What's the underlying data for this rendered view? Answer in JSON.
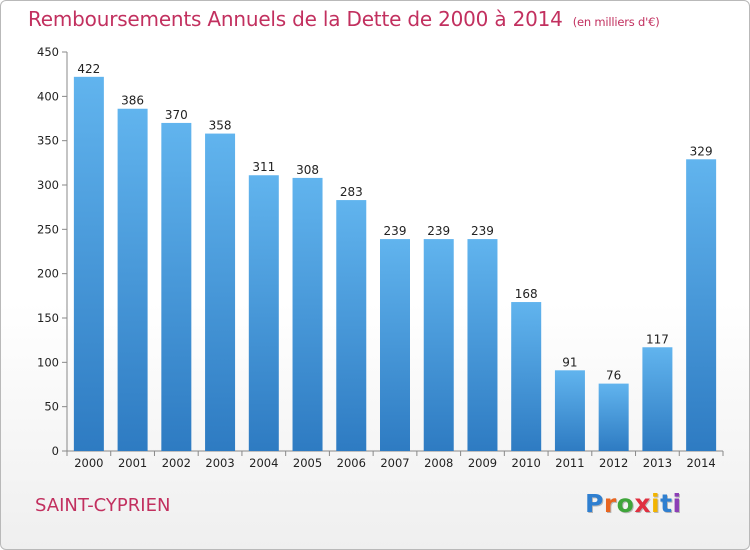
{
  "title": "Remboursements Annuels de la Dette de 2000 à 2014",
  "unit": "(en milliers d'€)",
  "commune": "SAINT-CYPRIEN",
  "logo": {
    "text": "Proxiti",
    "colors": [
      "#2f7fd0",
      "#e8651f",
      "#3fa53a",
      "#e03040",
      "#f2b400",
      "#2f7fd0",
      "#8c3fb6"
    ]
  },
  "colors": {
    "title": "#c2305f",
    "bar_top": "#61b4ee",
    "bar_bottom": "#2e7bc2"
  },
  "chart_data": {
    "type": "bar",
    "title": "Remboursements Annuels de la Dette de 2000 à 2014",
    "xlabel": "",
    "ylabel": "",
    "categories": [
      "2000",
      "2001",
      "2002",
      "2003",
      "2004",
      "2005",
      "2006",
      "2007",
      "2008",
      "2009",
      "2010",
      "2011",
      "2012",
      "2013",
      "2014"
    ],
    "values": [
      422,
      386,
      370,
      358,
      311,
      308,
      283,
      239,
      239,
      239,
      168,
      91,
      76,
      117,
      329
    ],
    "ylim": [
      0,
      450
    ],
    "yticks": [
      0,
      50,
      100,
      150,
      200,
      250,
      300,
      350,
      400,
      450
    ],
    "grid": false,
    "legend": "none"
  }
}
